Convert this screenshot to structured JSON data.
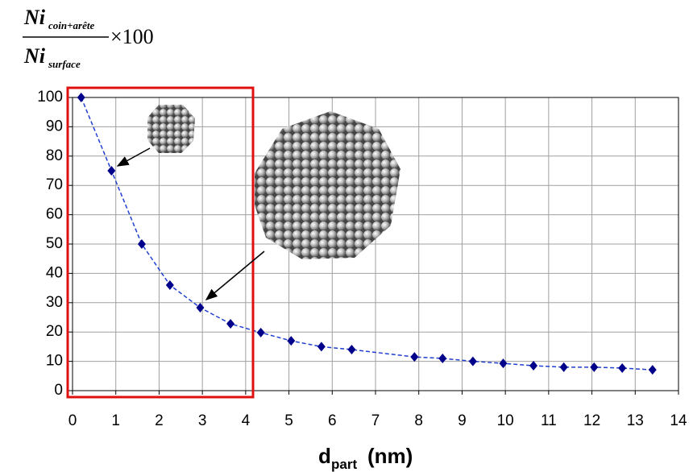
{
  "chart_data": {
    "type": "scatter",
    "y_label": {
      "numerator": "Ni",
      "numerator_sub": "coin+arête",
      "denominator": "Ni",
      "denominator_sub": "surface",
      "factor": "×100"
    },
    "x_label": {
      "main": "d",
      "sub": "part",
      "unit": "(nm)"
    },
    "x": [
      0.2,
      0.9,
      1.6,
      2.25,
      2.95,
      3.65,
      4.35,
      5.05,
      5.75,
      6.45,
      7.9,
      8.55,
      9.25,
      9.95,
      10.65,
      11.35,
      12.05,
      12.7,
      13.4
    ],
    "series": [
      {
        "color": "#00008b",
        "values": [
          100,
          75,
          50,
          36,
          28.3,
          22.8,
          19.8,
          17,
          15,
          14,
          11.5,
          11,
          10,
          9.3,
          8.5,
          8,
          8,
          7.7,
          7.1
        ]
      }
    ],
    "trendline_color": "#1f3fd0",
    "xlim": [
      0,
      14
    ],
    "xticks": [
      0,
      1,
      2,
      3,
      4,
      5,
      6,
      7,
      8,
      9,
      10,
      11,
      12,
      13,
      14
    ],
    "ylim": [
      0,
      100
    ],
    "yticks": [
      0,
      10,
      20,
      30,
      40,
      50,
      60,
      70,
      80,
      90,
      100
    ],
    "grid": true
  }
}
